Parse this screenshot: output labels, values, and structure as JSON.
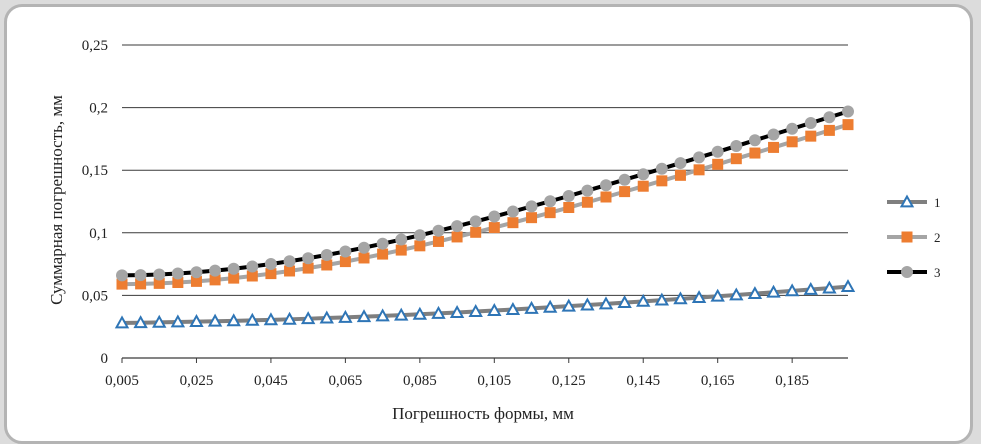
{
  "chart_data": {
    "type": "line",
    "title": "",
    "xlabel": "Погрешность формы, мм",
    "ylabel": "Суммарная погрешность, мм",
    "x_tick_labels": [
      "0,005",
      "0,025",
      "0,045",
      "0,065",
      "0,085",
      "0,105",
      "0,125",
      "0,145",
      "0,165",
      "0,185"
    ],
    "y_tick_labels": [
      "0",
      "0,05",
      "0,1",
      "0,15",
      "0,2",
      "0,25"
    ],
    "ylim": [
      0,
      0.25
    ],
    "xlim": [
      0.005,
      0.2
    ],
    "grid": "horizontal",
    "legend_position": "right",
    "x_start": 0.005,
    "x_step": 0.005,
    "series": [
      {
        "name": "1",
        "marker": "triangle",
        "line_color": "#7f7f7f",
        "marker_stroke": "#2e75b6",
        "marker_fill": "#ffffff",
        "values": [
          0.028,
          0.0282,
          0.0285,
          0.0288,
          0.0291,
          0.0294,
          0.0297,
          0.0301,
          0.0305,
          0.0309,
          0.0314,
          0.0319,
          0.0324,
          0.033,
          0.0336,
          0.0342,
          0.0349,
          0.0356,
          0.0363,
          0.0371,
          0.0379,
          0.0387,
          0.0396,
          0.0405,
          0.0414,
          0.0423,
          0.0432,
          0.0442,
          0.0452,
          0.0462,
          0.0472,
          0.0482,
          0.0493,
          0.0503,
          0.0514,
          0.0525,
          0.0536,
          0.0547,
          0.0558,
          0.057
        ]
      },
      {
        "name": "2",
        "marker": "square",
        "line_color": "#a5a5a5",
        "marker_stroke": "#ed7d31",
        "marker_fill": "#ed7d31",
        "values": [
          0.059,
          0.0592,
          0.0596,
          0.0603,
          0.0612,
          0.0624,
          0.0638,
          0.0655,
          0.0674,
          0.0695,
          0.0718,
          0.0743,
          0.077,
          0.0799,
          0.083,
          0.0862,
          0.0896,
          0.0931,
          0.0967,
          0.1004,
          0.1042,
          0.1081,
          0.1121,
          0.1161,
          0.1202,
          0.1244,
          0.1286,
          0.1329,
          0.1372,
          0.1415,
          0.1459,
          0.1503,
          0.1547,
          0.1592,
          0.1637,
          0.1682,
          0.1727,
          0.1772,
          0.1818,
          0.1864
        ]
      },
      {
        "name": "3",
        "marker": "circle",
        "line_color": "#000000",
        "marker_stroke": "#a5a5a5",
        "marker_fill": "#a5a5a5",
        "values": [
          0.066,
          0.0662,
          0.0667,
          0.0675,
          0.0685,
          0.0698,
          0.0713,
          0.0731,
          0.0751,
          0.0773,
          0.0797,
          0.0823,
          0.0851,
          0.0881,
          0.0913,
          0.0946,
          0.098,
          0.1016,
          0.1053,
          0.1091,
          0.113,
          0.117,
          0.1211,
          0.1252,
          0.1294,
          0.1337,
          0.138,
          0.1424,
          0.1468,
          0.1512,
          0.1557,
          0.1602,
          0.1647,
          0.1693,
          0.1739,
          0.1785,
          0.1831,
          0.1877,
          0.1923,
          0.1969
        ]
      }
    ]
  }
}
